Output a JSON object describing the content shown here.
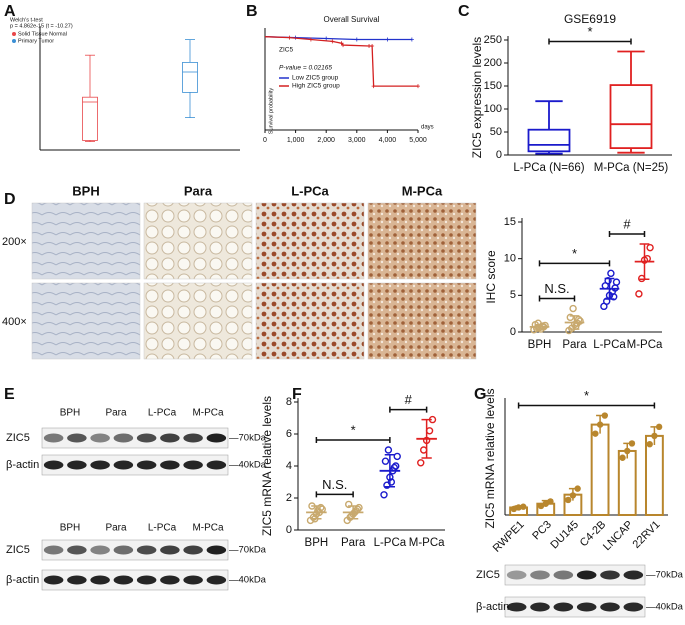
{
  "panel_labels": [
    "A",
    "B",
    "C",
    "D",
    "E",
    "F",
    "G"
  ],
  "chart_data": [
    {
      "type": "box",
      "title": "Welch's t-test",
      "subtitle": "p = 4.862e-15 (t = -10.27)",
      "categories": [
        "Solid Tissue Normal",
        "Primary Tumor"
      ],
      "colors": [
        "#e8474a",
        "#3b8fd4"
      ],
      "stats": [
        {
          "min": 0.7,
          "q1": 0.8,
          "median": 4.0,
          "q3": 4.4,
          "max": 7.9
        },
        {
          "min": 2.7,
          "q1": 4.8,
          "median": 6.5,
          "q3": 7.3,
          "max": 9.2
        }
      ],
      "ylim": [
        0,
        10
      ],
      "legend": true
    },
    {
      "type": "line",
      "title": "Overall Survival",
      "ylabel": "Survival probability",
      "xlabel": "days",
      "annotations": [
        "ZIC5",
        "P-value = 0.02165"
      ],
      "series": [
        {
          "name": "Low ZIC5 group",
          "color": "#2233cc",
          "x": [
            0,
            1000,
            2000,
            3000,
            4000,
            4800
          ],
          "values": [
            1,
            0.99,
            0.98,
            0.97,
            0.97,
            0.97
          ]
        },
        {
          "name": "High ZIC5 group",
          "color": "#d42020",
          "x": [
            0,
            800,
            1500,
            2200,
            2500,
            2550,
            3400,
            3500,
            3550,
            5000
          ],
          "values": [
            1,
            0.99,
            0.97,
            0.95,
            0.93,
            0.91,
            0.9,
            0.9,
            0.47,
            0.47
          ]
        }
      ],
      "xlim": [
        0,
        5000
      ],
      "ylim": [
        0,
        1.05
      ],
      "xticks": [
        0,
        {
          "value": 1000,
          "label": "1,000"
        },
        {
          "value": 2000,
          "label": "2,000"
        },
        {
          "value": 3000,
          "label": "3,000"
        },
        {
          "value": 4000,
          "label": "4,000"
        },
        {
          "value": 5000,
          "label": "5,000"
        }
      ]
    },
    {
      "type": "box",
      "title": "GSE6919",
      "ylabel": "ZIC5 expression levels",
      "categories": [
        "L-PCa (N=66)",
        "M-PCa (N=25)"
      ],
      "colors": [
        "#1a1acc",
        "#e02020"
      ],
      "stats": [
        {
          "min": 3,
          "q1": 8,
          "median": 22,
          "q3": 55,
          "max": 117
        },
        {
          "min": 5,
          "q1": 15,
          "median": 67,
          "q3": 152,
          "max": 225
        }
      ],
      "ylim": [
        0,
        250
      ],
      "yticks": [
        0,
        50,
        100,
        150,
        200,
        250
      ],
      "legend": false,
      "comparisons": [
        {
          "label": "*",
          "groups": [
            "L-PCa (N=66)",
            "M-PCa (N=25)"
          ]
        }
      ]
    },
    {
      "type": "dot",
      "ylabel": "IHC score",
      "categories": [
        "BPH",
        "Para",
        "L-PCa",
        "M-PCa"
      ],
      "colors": [
        "#c8a96e",
        "#c8a96e",
        "#1a1acc",
        "#e02020"
      ],
      "values": [
        0.7,
        1.3,
        5.9,
        9.6
      ],
      "errors": [
        0.3,
        0.9,
        1.4,
        2.4
      ],
      "points": [
        [
          0.3,
          0.5,
          0.6,
          0.8,
          0.9,
          1.0,
          1.2,
          0.4,
          0.7
        ],
        [
          0.2,
          0.5,
          1.0,
          1.2,
          1.5,
          2.0,
          3.2,
          0.8,
          1.7
        ],
        [
          3.5,
          4.2,
          5.0,
          5.5,
          6.0,
          6.3,
          7.0,
          8.0,
          4.8,
          6.8
        ],
        [
          5.2,
          7.3,
          9.8,
          10.0,
          11.5
        ]
      ],
      "ylim": [
        0,
        15
      ],
      "yticks": [
        0,
        5,
        10,
        15
      ],
      "comparisons": [
        {
          "label": "N.S.",
          "groups": [
            "BPH",
            "Para"
          ]
        },
        {
          "label": "*",
          "groups": [
            "BPH",
            "L-PCa"
          ]
        },
        {
          "label": "#",
          "groups": [
            "L-PCa",
            "M-PCa"
          ]
        }
      ]
    },
    {
      "type": "dot",
      "ylabel": "ZIC5 mRNA relative levels",
      "categories": [
        "BPH",
        "Para",
        "L-PCa",
        "M-PCa"
      ],
      "colors": [
        "#c8a96e",
        "#c8a96e",
        "#1a1acc",
        "#e02020"
      ],
      "values": [
        1.1,
        1.1,
        3.7,
        5.7
      ],
      "errors": [
        0.4,
        0.4,
        1.0,
        1.2
      ],
      "points": [
        [
          0.6,
          0.8,
          1.0,
          1.1,
          1.3,
          1.5,
          0.7,
          1.2,
          1.4
        ],
        [
          0.6,
          0.8,
          1.0,
          1.2,
          1.4,
          1.6,
          0.9,
          1.1,
          1.3
        ],
        [
          2.2,
          2.8,
          3.3,
          3.7,
          4.0,
          4.3,
          5.0,
          3.0,
          3.9,
          4.6
        ],
        [
          4.2,
          5.0,
          5.6,
          6.2,
          6.9
        ]
      ],
      "ylim": [
        0,
        8
      ],
      "yticks": [
        0,
        2,
        4,
        6,
        8
      ],
      "comparisons": [
        {
          "label": "N.S.",
          "groups": [
            "BPH",
            "Para"
          ]
        },
        {
          "label": "*",
          "groups": [
            "BPH",
            "L-PCa"
          ]
        },
        {
          "label": "#",
          "groups": [
            "L-PCa",
            "M-PCa"
          ]
        }
      ]
    },
    {
      "type": "bar",
      "ylabel": "ZIC5 mRNA relative levels",
      "categories": [
        "RWPE1",
        "PC3",
        "DU145",
        "C4-2B",
        "LNCAP",
        "22RV1"
      ],
      "color": "#b8862d",
      "values": [
        1,
        1.5,
        2.7,
        12,
        8.5,
        10.5
      ],
      "errors": [
        0.2,
        0.4,
        0.8,
        1.2,
        1.0,
        1.2
      ],
      "points": [
        [
          0.8,
          1.0,
          1.1
        ],
        [
          1.2,
          1.5,
          1.8
        ],
        [
          2.0,
          2.6,
          3.5
        ],
        [
          10.8,
          12.0,
          13.2
        ],
        [
          7.6,
          8.5,
          9.5
        ],
        [
          9.4,
          10.5,
          11.7
        ]
      ],
      "ylim": [
        0,
        15
      ],
      "xtick_rotation": -45,
      "comparisons": [
        {
          "label": "*",
          "groups": [
            "RWPE1",
            "22RV1"
          ]
        }
      ]
    }
  ],
  "ihc_images": {
    "columns": [
      "BPH",
      "Para",
      "L-PCa",
      "M-PCa"
    ],
    "rows": [
      "200×",
      "400×"
    ]
  },
  "western_E": {
    "groups": [
      "BPH",
      "Para",
      "L-PCa",
      "M-PCa"
    ],
    "bands": [
      "ZIC5",
      "β-actin"
    ],
    "markers": [
      "—70kDa",
      "—40kDa"
    ]
  },
  "western_G": {
    "bands": [
      "ZIC5",
      "β-actin"
    ],
    "markers": [
      "—70kDa",
      "—40kDa"
    ]
  }
}
